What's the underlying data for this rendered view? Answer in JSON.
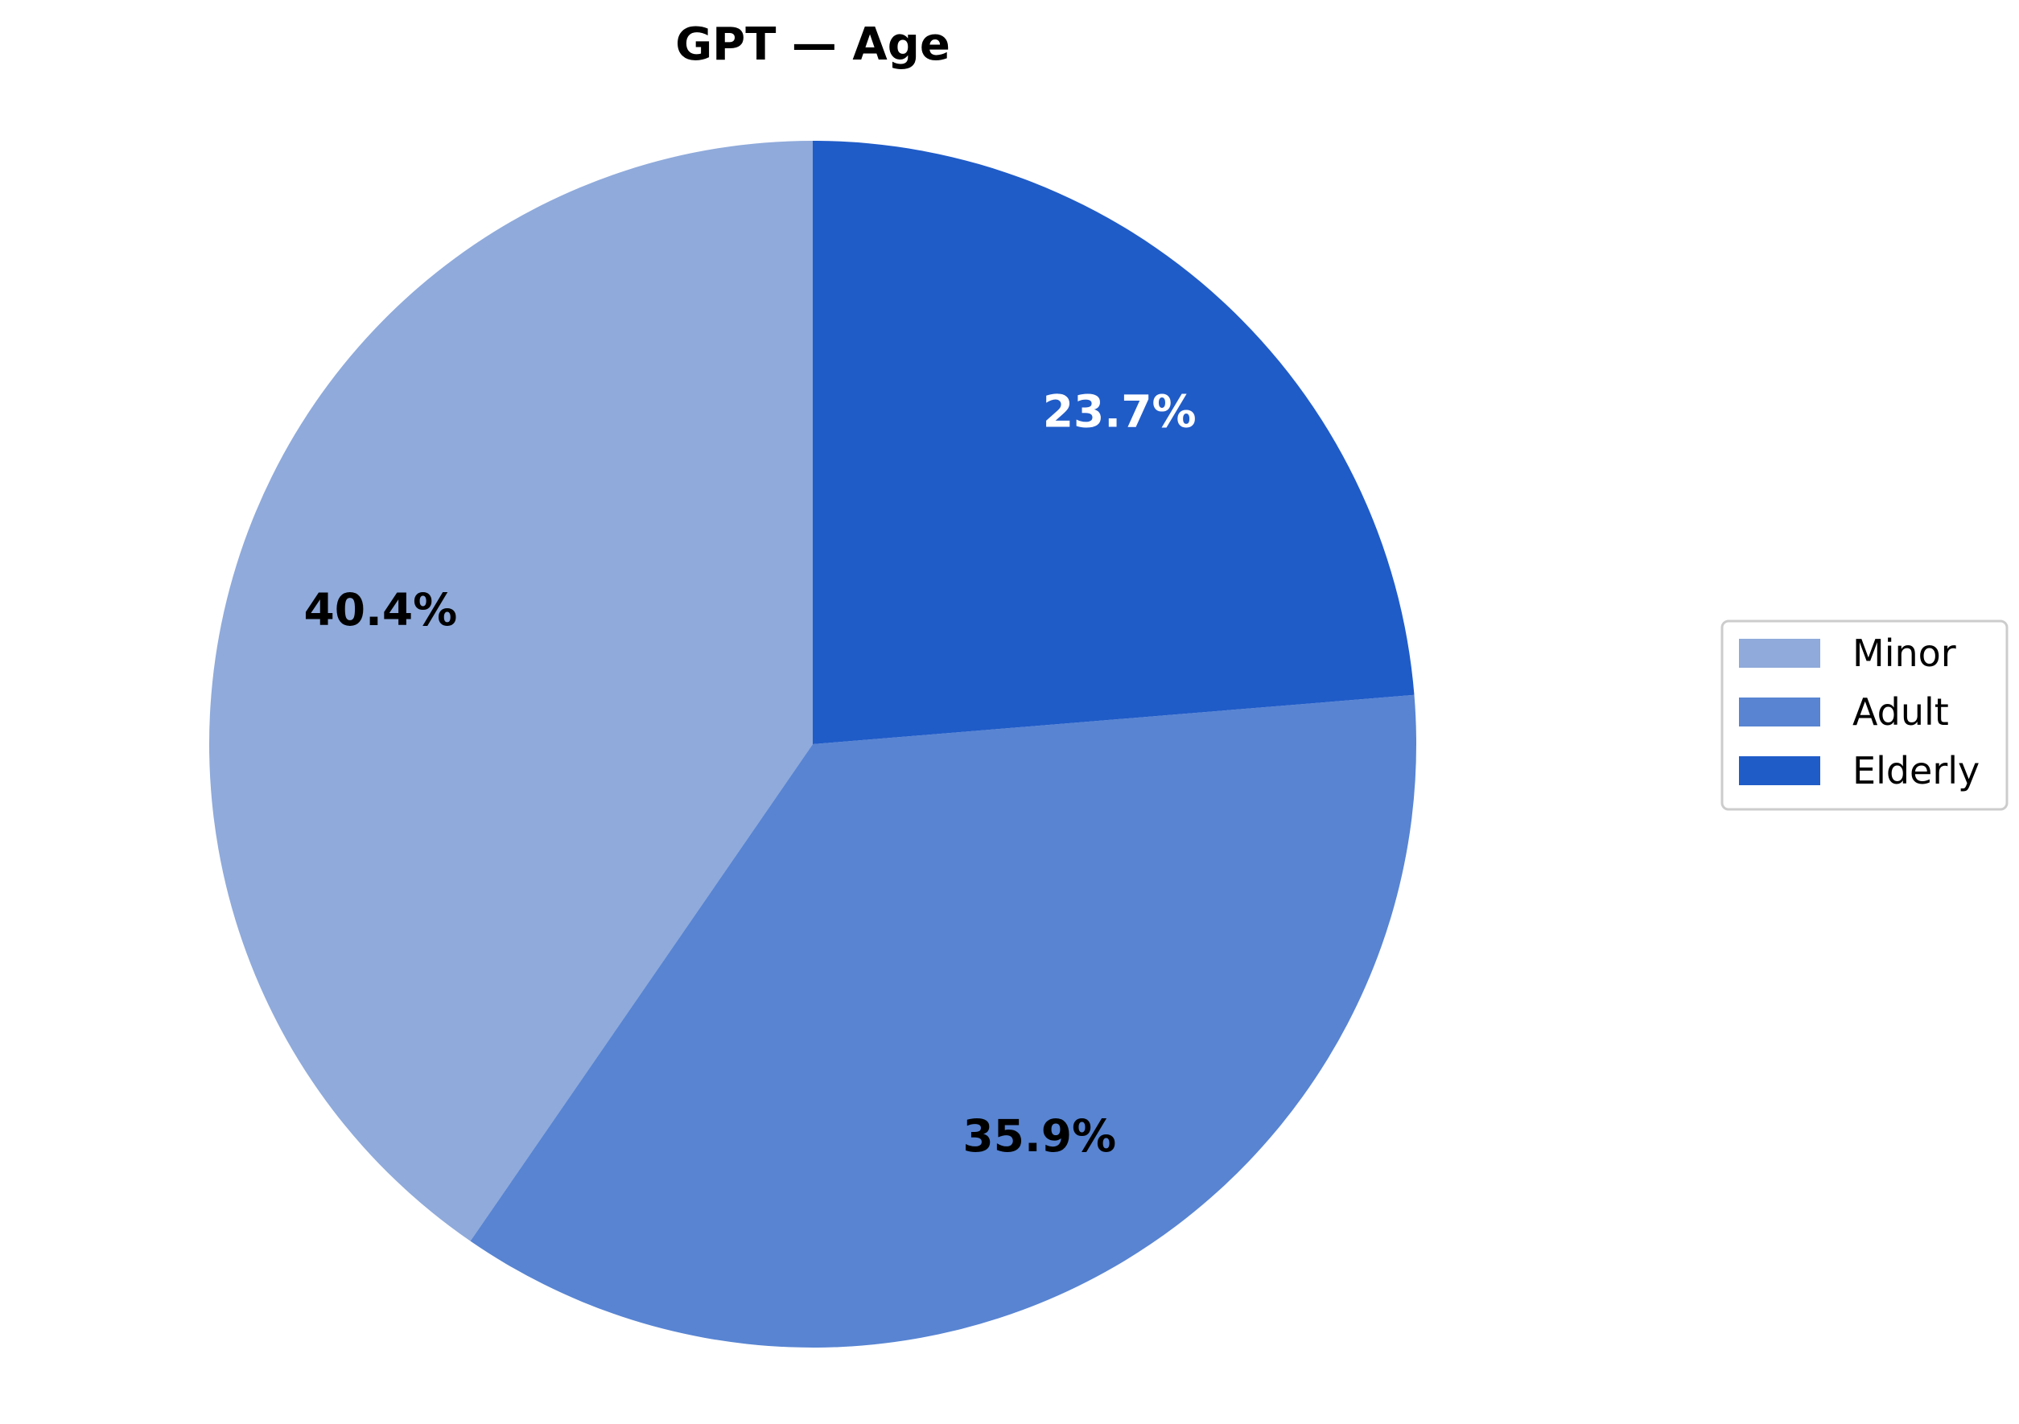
{
  "chart_data": {
    "type": "pie",
    "title": "GPT — Age",
    "categories": [
      "Minor",
      "Adult",
      "Elderly"
    ],
    "values": [
      40.4,
      35.9,
      23.7
    ],
    "value_labels": [
      "40.4%",
      "35.9%",
      "23.7%"
    ],
    "colors": [
      "#8faadb",
      "#5884d2",
      "#205cc8"
    ],
    "label_colors": [
      "#000000",
      "#000000",
      "#ffffff"
    ],
    "start_angle_deg": 90,
    "direction": "counterclockwise",
    "legend": {
      "position": "right",
      "entries": [
        "Minor",
        "Adult",
        "Elderly"
      ]
    }
  }
}
